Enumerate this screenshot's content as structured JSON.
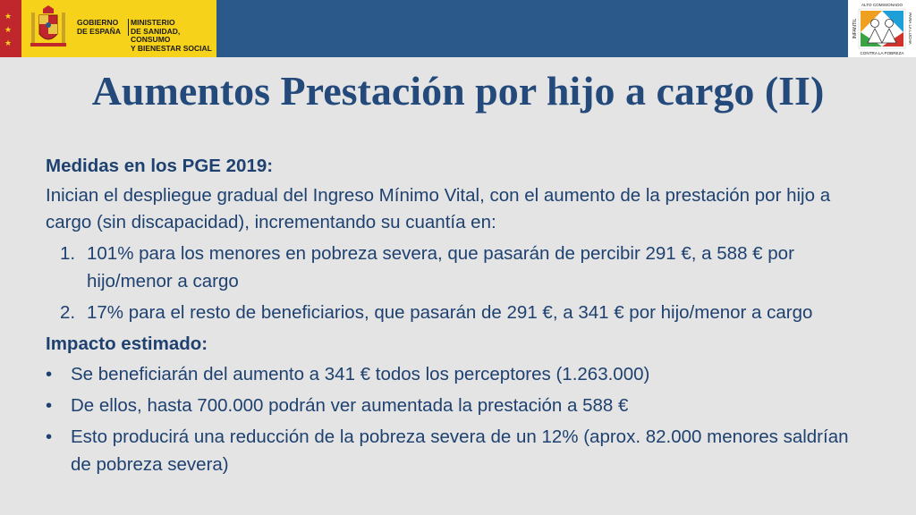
{
  "header": {
    "gov_lines": [
      "GOBIERNO",
      "DE ESPAÑA"
    ],
    "ministry_lines": [
      "MINISTERIO",
      "DE SANIDAD, CONSUMO",
      "Y BIENESTAR SOCIAL"
    ],
    "right_logo": {
      "top_line": "ALTO COMISIONADO",
      "side_left": "INFANTIL",
      "side_right": "PARA LA LUCHA",
      "bottom_line": "CONTRA LA POBREZA"
    },
    "colors": {
      "bar": "#2b5a8a",
      "gov_yellow": "#f7d21a",
      "eu_red": "#c0272d"
    }
  },
  "title": "Aumentos Prestación por hijo a cargo (II)",
  "section1": {
    "heading": "Medidas en los PGE 2019:",
    "paragraph": "Inician el despliegue gradual del Ingreso Mínimo Vital, con el aumento de la prestación por hijo a cargo (sin discapacidad), incrementando su cuantía en:",
    "items": [
      {
        "marker": "1.",
        "text": "101% para los menores en pobreza severa, que pasarán de percibir 291 €, a 588 € por hijo/menor a cargo"
      },
      {
        "marker": "2.",
        "text": "17% para el resto de beneficiarios, que pasarán de 291 €, a 341 € por hijo/menor a cargo"
      }
    ]
  },
  "section2": {
    "heading": "Impacto estimado:",
    "items": [
      {
        "marker": "•",
        "text": "Se beneficiarán del aumento a 341 € todos los perceptores (1.263.000)"
      },
      {
        "marker": "•",
        "text": "De ellos, hasta 700.000 podrán ver aumentada la prestación a 588 €"
      },
      {
        "marker": "•",
        "text": "Esto producirá una reducción de la pobreza severa de un 12% (aprox. 82.000 menores saldrían de pobreza severa)"
      }
    ]
  }
}
